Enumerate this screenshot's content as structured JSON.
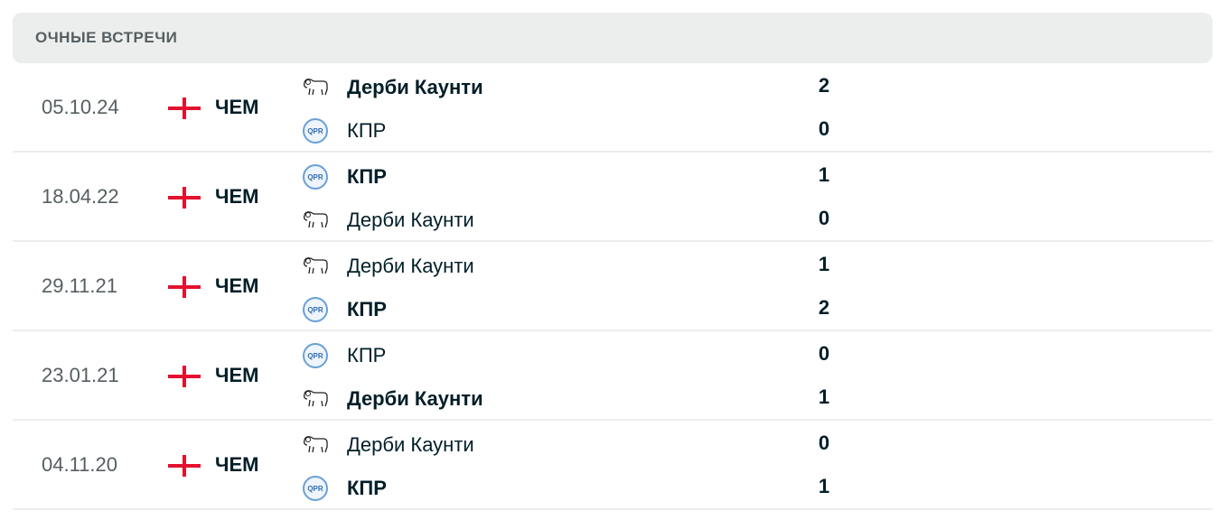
{
  "section_title": "ОЧНЫЕ ВСТРЕЧИ",
  "colors": {
    "flag": "#e3112f",
    "header_bg": "#eceeee"
  },
  "matches": [
    {
      "date": "05.10.24",
      "competition": "ЧЕМ",
      "flag": "england-flag",
      "home": {
        "name": "Дерби Каунти",
        "logo": "derby-ram-icon",
        "score": "2",
        "winner": true
      },
      "away": {
        "name": "КПР",
        "logo": "qpr-crest-icon",
        "score": "0",
        "winner": false
      }
    },
    {
      "date": "18.04.22",
      "competition": "ЧЕМ",
      "flag": "england-flag",
      "home": {
        "name": "КПР",
        "logo": "qpr-crest-icon",
        "score": "1",
        "winner": true
      },
      "away": {
        "name": "Дерби Каунти",
        "logo": "derby-ram-icon",
        "score": "0",
        "winner": false
      }
    },
    {
      "date": "29.11.21",
      "competition": "ЧЕМ",
      "flag": "england-flag",
      "home": {
        "name": "Дерби Каунти",
        "logo": "derby-ram-icon",
        "score": "1",
        "winner": false
      },
      "away": {
        "name": "КПР",
        "logo": "qpr-crest-icon",
        "score": "2",
        "winner": true
      }
    },
    {
      "date": "23.01.21",
      "competition": "ЧЕМ",
      "flag": "england-flag",
      "home": {
        "name": "КПР",
        "logo": "qpr-crest-icon",
        "score": "0",
        "winner": false
      },
      "away": {
        "name": "Дерби Каунти",
        "logo": "derby-ram-icon",
        "score": "1",
        "winner": true
      }
    },
    {
      "date": "04.11.20",
      "competition": "ЧЕМ",
      "flag": "england-flag",
      "home": {
        "name": "Дерби Каунти",
        "logo": "derby-ram-icon",
        "score": "0",
        "winner": false
      },
      "away": {
        "name": "КПР",
        "logo": "qpr-crest-icon",
        "score": "1",
        "winner": true
      }
    }
  ]
}
